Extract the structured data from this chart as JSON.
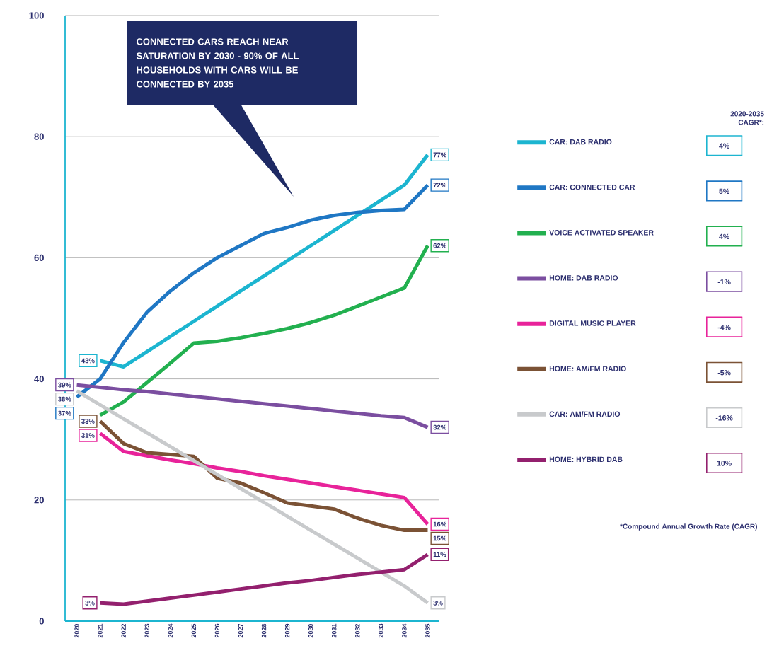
{
  "chart_data": {
    "type": "line",
    "categories": [
      "2020",
      "2021",
      "2022",
      "2023",
      "2024",
      "2025",
      "2026",
      "2027",
      "2028",
      "2029",
      "2030",
      "2031",
      "2032",
      "2033",
      "2034",
      "2035"
    ],
    "ylim": [
      0,
      100
    ],
    "yticks": [
      0,
      20,
      40,
      60,
      80,
      100
    ],
    "grid": "y",
    "legend": "right",
    "marker": "none",
    "line_style": "solid",
    "legend_title": "2020-2035 CAGR*:",
    "series": [
      {
        "name": "CAR: DAB RADIO",
        "color": "#1cb5d0",
        "values": [
          null,
          43,
          42,
          44.5,
          47,
          49.5,
          52,
          54.5,
          57,
          59.5,
          62,
          64.5,
          67,
          69.5,
          72,
          77
        ],
        "value_labels": [
          null,
          "43%",
          null,
          null,
          null,
          null,
          null,
          null,
          null,
          null,
          null,
          null,
          null,
          null,
          null,
          "77%"
        ]
      },
      {
        "name": "CAR: CONNECTED CAR",
        "color": "#1f77c4",
        "values": [
          37,
          40,
          46,
          51,
          54.5,
          57.5,
          60,
          62,
          64,
          65,
          66.2,
          67,
          67.5,
          67.8,
          68,
          72
        ],
        "value_labels": [
          "37%",
          null,
          null,
          null,
          null,
          null,
          null,
          null,
          null,
          null,
          null,
          null,
          null,
          null,
          null,
          "72%"
        ]
      },
      {
        "name": "VOICE ACTIVATED SPEAKER",
        "color": "#22b04f",
        "values": [
          null,
          34,
          36.2,
          39.4,
          42.6,
          45.9,
          46.2,
          46.8,
          47.5,
          48.3,
          49.3,
          50.5,
          52,
          53.5,
          55,
          62
        ],
        "value_labels": [
          null,
          null,
          null,
          null,
          null,
          null,
          null,
          null,
          null,
          null,
          null,
          null,
          null,
          null,
          null,
          "62%"
        ]
      },
      {
        "name": "HOME: DAB RADIO",
        "color": "#7b4ea0",
        "values": [
          39,
          38.6,
          38.2,
          37.9,
          37.5,
          37.1,
          36.7,
          36.3,
          35.9,
          35.5,
          35.1,
          34.7,
          34.3,
          33.9,
          33.6,
          32
        ],
        "value_labels": [
          "39%",
          null,
          null,
          null,
          null,
          null,
          null,
          null,
          null,
          null,
          null,
          null,
          null,
          null,
          null,
          "32%"
        ]
      },
      {
        "name": "DIGITAL MUSIC PLAYER",
        "color": "#e8239a",
        "values": [
          null,
          31,
          28,
          27.3,
          26.6,
          26,
          25.3,
          24.7,
          24,
          23.4,
          22.8,
          22.2,
          21.6,
          21,
          20.4,
          16
        ],
        "value_labels": [
          null,
          "31%",
          null,
          null,
          null,
          null,
          null,
          null,
          null,
          null,
          null,
          null,
          null,
          null,
          null,
          "16%"
        ]
      },
      {
        "name": "HOME: AM/FM RADIO",
        "color": "#7b5235",
        "values": [
          null,
          33,
          29.3,
          27.8,
          27.5,
          27.2,
          23.6,
          22.8,
          21.2,
          19.5,
          19,
          18.5,
          17,
          15.8,
          15,
          15
        ],
        "value_labels": [
          null,
          "33%",
          null,
          null,
          null,
          null,
          null,
          null,
          null,
          null,
          null,
          null,
          null,
          null,
          null,
          "15%"
        ]
      },
      {
        "name": "CAR: AM/FM RADIO",
        "color": "#c8cacc",
        "values": [
          38,
          35.7,
          33.4,
          31.1,
          28.8,
          26.5,
          24.2,
          21.9,
          19.6,
          17.3,
          15,
          12.7,
          10.4,
          8.1,
          5.8,
          3
        ],
        "value_labels": [
          "38%",
          null,
          null,
          null,
          null,
          null,
          null,
          null,
          null,
          null,
          null,
          null,
          null,
          null,
          null,
          "3%"
        ]
      },
      {
        "name": "HOME: HYBRID DAB",
        "color": "#93206e",
        "values": [
          null,
          3,
          2.8,
          3.3,
          3.8,
          4.3,
          4.8,
          5.3,
          5.8,
          6.3,
          6.7,
          7.2,
          7.7,
          8.1,
          8.5,
          11
        ],
        "value_labels": [
          null,
          "3%",
          null,
          null,
          null,
          null,
          null,
          null,
          null,
          null,
          null,
          null,
          null,
          null,
          null,
          "11%"
        ]
      }
    ],
    "annotations": [
      "CONNECTED CARS REACH NEAR SATURATION BY 2030 - 90% OF ALL HOUSEHOLDS WITH CARS WILL BE CONNECTED BY 2035",
      "4%",
      "5%",
      "4%",
      "-1%",
      "-4%",
      "-5%",
      "-16%",
      "10%",
      "*Compound Annual Growth Rate (CAGR)"
    ]
  }
}
